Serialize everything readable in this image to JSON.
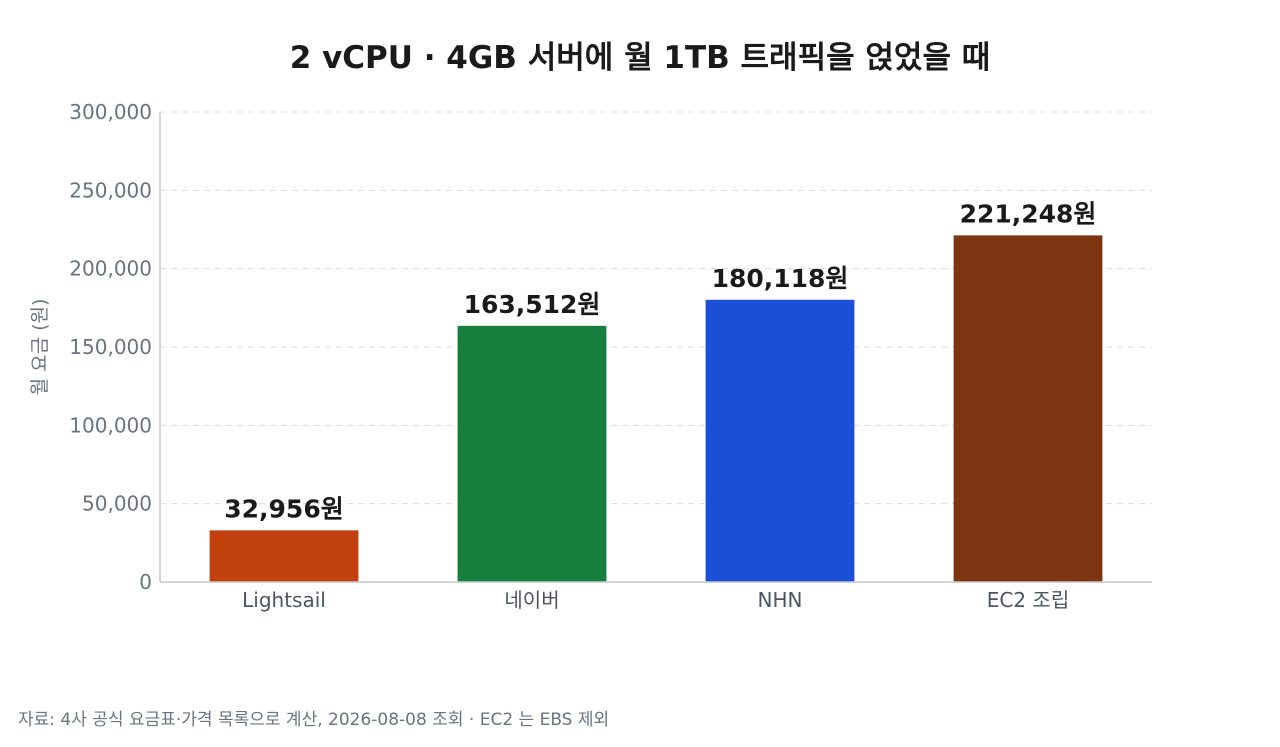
{
  "chart_data": {
    "type": "bar",
    "title": "2 vCPU · 4GB 서버에 월 1TB 트래픽을 얹었을 때",
    "ylabel": "월 요금 (원)",
    "xlabel": "",
    "ylim": [
      0,
      300000
    ],
    "yticks": [
      0,
      50000,
      100000,
      150000,
      200000,
      250000,
      300000
    ],
    "ytick_labels": [
      "0",
      "50,000",
      "100,000",
      "150,000",
      "200,000",
      "250,000",
      "300,000"
    ],
    "grid": true,
    "categories": [
      "Lightsail",
      "네이버",
      "NHN",
      "EC2 조립"
    ],
    "values": [
      32956,
      163512,
      180118,
      221248
    ],
    "data_labels": [
      "32,956원",
      "163,512원",
      "180,118원",
      "221,248원"
    ],
    "colors": [
      "#c2410c",
      "#15803d",
      "#1d4ed8",
      "#7c3510"
    ]
  },
  "footer": {
    "source": "자료: 4사 공식 요금표·가격 목록으로 계산, 2026-08-08 조회 · EC2 는 EBS 제외"
  }
}
